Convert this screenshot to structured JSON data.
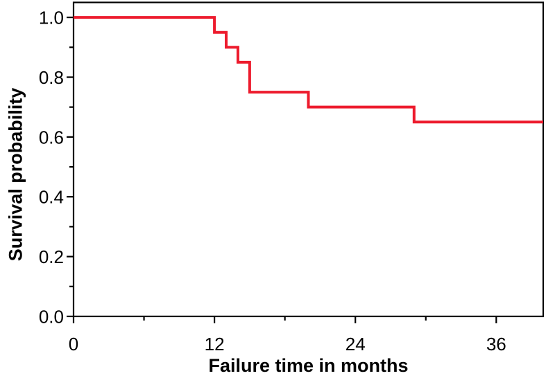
{
  "chart_data": {
    "type": "line",
    "subtype": "kaplan-meier-step",
    "title": "",
    "xlabel": "Failure time in months",
    "ylabel": "Survival probability",
    "xlim": [
      0,
      40
    ],
    "ylim": [
      0,
      1.05
    ],
    "grid": false,
    "frame": true,
    "legend": "none",
    "axis_color": "#000000",
    "background_color": "#ffffff",
    "x_ticks": {
      "major": [
        0,
        12,
        24,
        36
      ],
      "labels": [
        "0",
        "12",
        "24",
        "36"
      ],
      "minor": [
        6,
        18,
        30
      ]
    },
    "y_ticks": {
      "major": [
        0,
        0.2,
        0.4,
        0.6,
        0.8,
        1.0
      ],
      "labels": [
        "0.0",
        "0.2",
        "0.4",
        "0.6",
        "0.8",
        "1.0"
      ],
      "minor": [
        0.1,
        0.3,
        0.5,
        0.7,
        0.9
      ]
    },
    "series": [
      {
        "name": "survival-probability-curve",
        "color": "#ed1b2d",
        "line_width": 4,
        "step_levels": [
          {
            "from_month": 0,
            "to_month": 12,
            "probability": 1.0
          },
          {
            "from_month": 12,
            "to_month": 13,
            "probability": 0.95
          },
          {
            "from_month": 13,
            "to_month": 14,
            "probability": 0.9
          },
          {
            "from_month": 14,
            "to_month": 15,
            "probability": 0.85
          },
          {
            "from_month": 15,
            "to_month": 20,
            "probability": 0.75
          },
          {
            "from_month": 20,
            "to_month": 29,
            "probability": 0.7
          },
          {
            "from_month": 29,
            "to_month": 40,
            "probability": 0.65
          }
        ]
      }
    ]
  }
}
